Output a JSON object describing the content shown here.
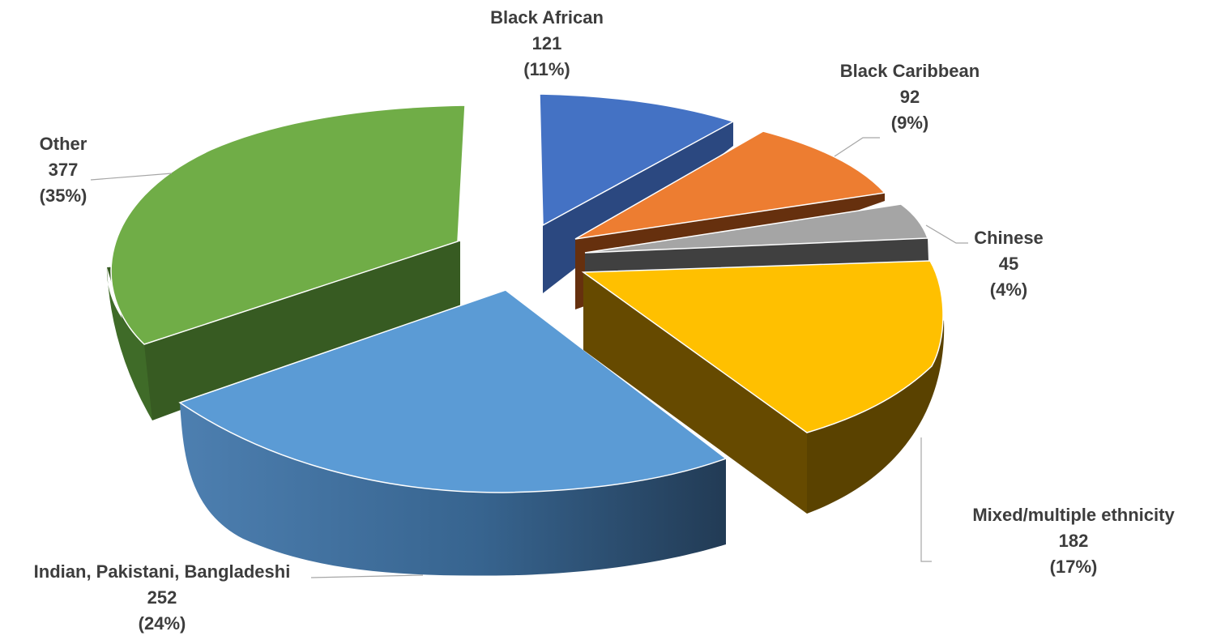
{
  "chart_data": {
    "type": "pie",
    "variant": "3d-exploded",
    "slices": [
      {
        "name": "Black African",
        "value": 121,
        "percent": "(11%)",
        "color": "#4472C4",
        "side_color": "#2B4880"
      },
      {
        "name": "Black Caribbean",
        "value": 92,
        "percent": "(9%)",
        "color": "#ED7D31",
        "side_color": "#66300E"
      },
      {
        "name": "Chinese",
        "value": 45,
        "percent": "(4%)",
        "color": "#A5A5A5",
        "side_color": "#404040"
      },
      {
        "name": "Mixed/multiple ethnicity",
        "value": 182,
        "percent": "(17%)",
        "color": "#FFC000",
        "side_color": "#664A00"
      },
      {
        "name": "Indian, Pakistani, Bangladeshi",
        "value": 252,
        "percent": "(24%)",
        "color": "#5B9BD5",
        "side_color": "#2E5780"
      },
      {
        "name": "Other",
        "value": 377,
        "percent": "(35%)",
        "color": "#70AD47",
        "side_color": "#375B22"
      }
    ],
    "legend": "none",
    "label_color": "#3d3d3d",
    "leader_color": "#a6a6a6"
  }
}
